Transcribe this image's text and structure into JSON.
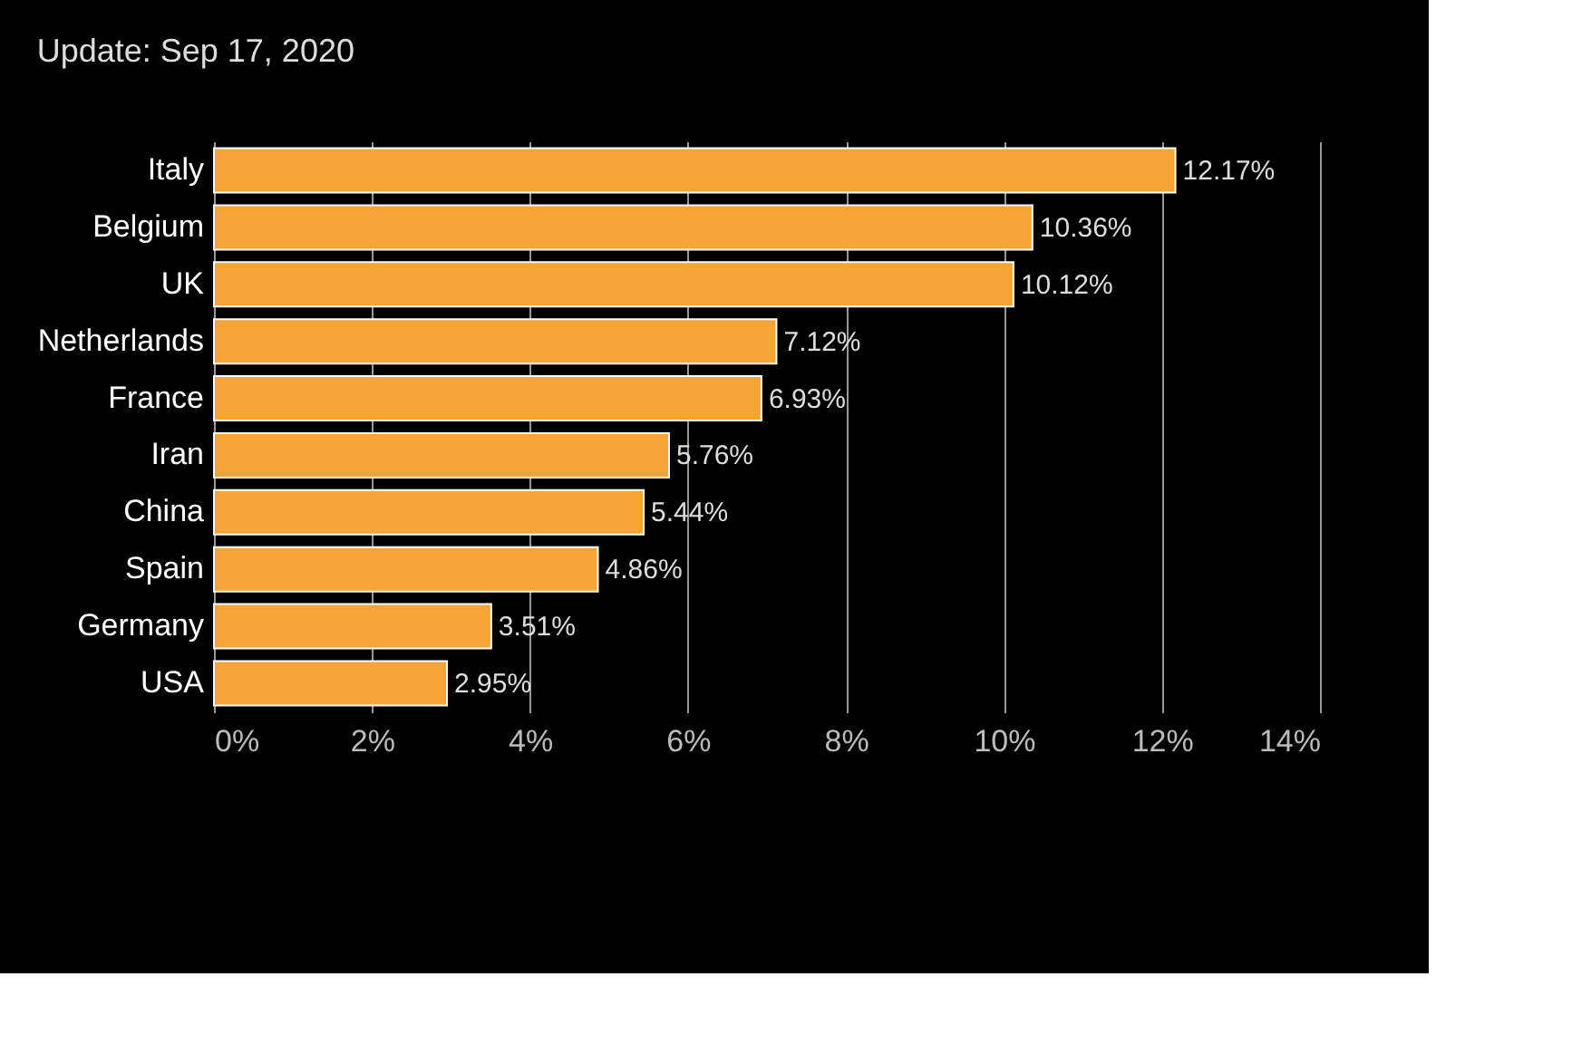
{
  "chart_data": {
    "type": "bar",
    "orientation": "horizontal",
    "title": "Update: Sep 17, 2020",
    "categories": [
      "Italy",
      "Belgium",
      "UK",
      "Netherlands",
      "France",
      "Iran",
      "China",
      "Spain",
      "Germany",
      "USA"
    ],
    "values": [
      12.17,
      10.36,
      10.12,
      7.12,
      6.93,
      5.76,
      5.44,
      4.86,
      3.51,
      2.95
    ],
    "value_labels": [
      "12.17%",
      "10.36%",
      "10.12%",
      "7.12%",
      "6.93%",
      "5.76%",
      "5.44%",
      "4.86%",
      "3.51%",
      "2.95%"
    ],
    "color": "#f5a535",
    "xlim": [
      0,
      14
    ],
    "xticks": [
      {
        "value": 0,
        "label": "0%"
      },
      {
        "value": 2,
        "label": "2%"
      },
      {
        "value": 4,
        "label": "4%"
      },
      {
        "value": 6,
        "label": "6%"
      },
      {
        "value": 8,
        "label": "8%"
      },
      {
        "value": 10,
        "label": "10%"
      },
      {
        "value": 12,
        "label": "12%"
      },
      {
        "value": 14,
        "label": "14%"
      }
    ],
    "grid": "x"
  }
}
